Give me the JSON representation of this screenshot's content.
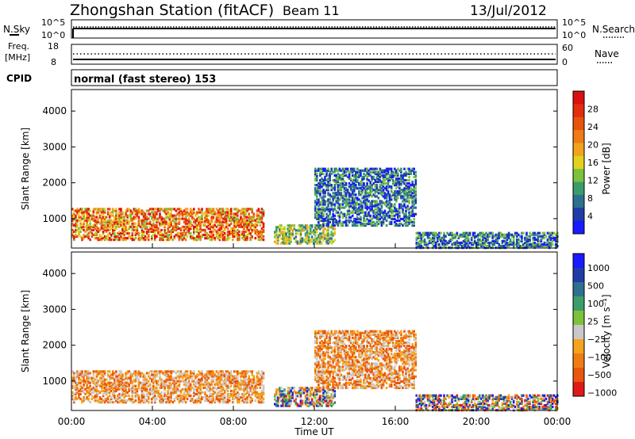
{
  "header": {
    "station": "Zhongshan Station (fitACF)",
    "beam": "Beam 11",
    "date": "13/Jul/2012"
  },
  "status_panel": {
    "nsky_label": "N.Sky",
    "nsky_ticks": [
      "10^5",
      "10^0"
    ],
    "nsearch_label": "N.Search",
    "nsearch_ticks": [
      "10^5",
      "10^0"
    ],
    "freq_label_1": "Freq.",
    "freq_label_2": "[MHz]",
    "freq_ticks": [
      "18",
      "8"
    ],
    "nave_label": "Nave",
    "nave_ticks": [
      "60",
      "0"
    ],
    "cpid_label": "CPID",
    "cpid_text": "normal (fast stereo) 153"
  },
  "x_axis": {
    "label": "Time UT",
    "ticks": [
      "00:00",
      "04:00",
      "08:00",
      "12:00",
      "16:00",
      "20:00",
      "00:00"
    ]
  },
  "colors": {
    "scale": [
      "#1a1aff",
      "#1f3ca8",
      "#2f6f8f",
      "#3c9d6a",
      "#7cc23c",
      "#e2d21e",
      "#f2a21e",
      "#f07a14",
      "#e8520f",
      "#e22d0f",
      "#dd1010"
    ],
    "velocity_scale": [
      "#e01818",
      "#e8560f",
      "#f07d14",
      "#f5a31e",
      "#c8c8c8",
      "#7cc23c",
      "#3c9d6a",
      "#2f6f8f",
      "#1f3ca8",
      "#1a1aff"
    ]
  },
  "chart_data": [
    {
      "type": "heatmap",
      "title": "",
      "ylabel": "Slant Range [km]",
      "xlabel": "",
      "ylim": [
        180,
        4600
      ],
      "yticks": [
        "1000",
        "2000",
        "3000",
        "4000"
      ],
      "colorbar_label": "Power [dB]",
      "colorbar_ticks": [
        "4",
        "8",
        "12",
        "16",
        "20",
        "24",
        "28"
      ],
      "patches": [
        {
          "t": [
            0.0,
            9.5
          ],
          "r": [
            400,
            1300
          ],
          "dominant": "power-high"
        },
        {
          "t": [
            10.0,
            13.0
          ],
          "r": [
            300,
            800
          ],
          "dominant": "power-mid"
        },
        {
          "t": [
            12.0,
            17.0
          ],
          "r": [
            800,
            2400
          ],
          "dominant": "power-low"
        },
        {
          "t": [
            17.0,
            24.0
          ],
          "r": [
            180,
            600
          ],
          "dominant": "power-low"
        }
      ]
    },
    {
      "type": "heatmap",
      "title": "",
      "ylabel": "Slant Range [km]",
      "xlabel": "Time UT",
      "ylim": [
        180,
        4600
      ],
      "yticks": [
        "1000",
        "2000",
        "3000",
        "4000"
      ],
      "colorbar_label": "Velocity [m s⁻¹]",
      "colorbar_ticks": [
        "1000",
        "500",
        "100",
        "25",
        "−25",
        "−100",
        "−500",
        "−1000"
      ],
      "patches": [
        {
          "t": [
            0.0,
            9.5
          ],
          "r": [
            400,
            1300
          ],
          "dominant": "velocity-negative"
        },
        {
          "t": [
            10.0,
            13.0
          ],
          "r": [
            300,
            800
          ],
          "dominant": "velocity-mixed"
        },
        {
          "t": [
            12.0,
            17.0
          ],
          "r": [
            800,
            2400
          ],
          "dominant": "velocity-negative"
        },
        {
          "t": [
            17.0,
            24.0
          ],
          "r": [
            180,
            600
          ],
          "dominant": "velocity-mixed"
        }
      ]
    }
  ]
}
